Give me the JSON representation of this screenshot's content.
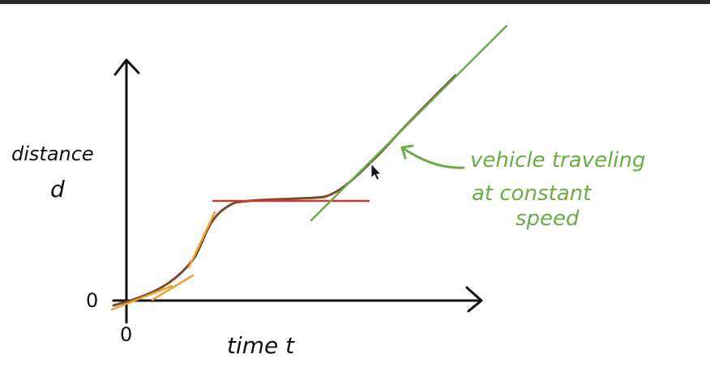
{
  "diagram": {
    "y_axis": {
      "label_line1": "distance",
      "label_line2": "d",
      "origin_label": "0"
    },
    "x_axis": {
      "label": "time t",
      "origin_label": "0"
    },
    "annotation": {
      "line1": "vehicle traveling",
      "line2": "at constant",
      "line3": "speed"
    }
  },
  "colors": {
    "axes": "#111111",
    "curve": "#7a4a2e",
    "tangent_orange": "#f0a030",
    "tangent_red": "#cc3b2b",
    "tangent_green": "#6aad45",
    "annotation": "#6aad45"
  },
  "icons": [
    "cursor-icon"
  ]
}
